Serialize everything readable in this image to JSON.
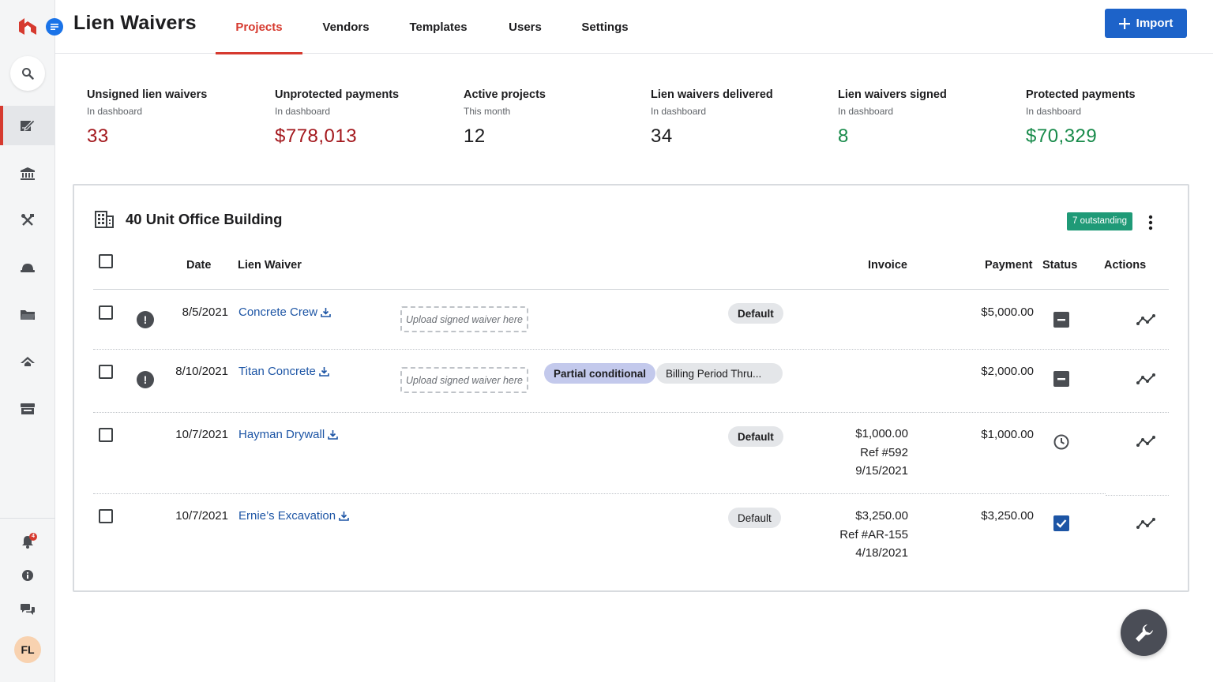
{
  "app": {
    "title": "Lien Waivers"
  },
  "nav": {
    "tabs": [
      "Projects",
      "Vendors",
      "Templates",
      "Users",
      "Settings"
    ],
    "active": "Projects"
  },
  "header": {
    "import_label": "Import"
  },
  "sidebar": {
    "items": [
      "search-icon",
      "lien-waiver-icon",
      "bank-icon",
      "tools-icon",
      "hardhat-icon",
      "folder-icon",
      "home-icon",
      "store-icon"
    ],
    "bottom": [
      "bell-icon",
      "info-icon",
      "chat-icon"
    ],
    "notification_count": "4",
    "avatar_initials": "FL"
  },
  "stats": [
    {
      "label": "Unsigned lien waivers",
      "sub": "In dashboard",
      "value": "33",
      "color": "#a3171c"
    },
    {
      "label": "Unprotected payments",
      "sub": "In dashboard",
      "value": "$778,013",
      "color": "#a3171c"
    },
    {
      "label": "Active projects",
      "sub": "This month",
      "value": "12",
      "color": "#1d1d1f"
    },
    {
      "label": "Lien waivers delivered",
      "sub": "In dashboard",
      "value": "34",
      "color": "#1d1d1f"
    },
    {
      "label": "Lien waivers signed",
      "sub": "In dashboard",
      "value": "8",
      "color": "#178a4a"
    },
    {
      "label": "Protected payments",
      "sub": "In dashboard",
      "value": "$70,329",
      "color": "#178a4a"
    }
  ],
  "project": {
    "title": "40 Unit Office Building",
    "outstanding": "7 outstanding",
    "columns": {
      "date": "Date",
      "waiver": "Lien Waiver",
      "invoice": "Invoice",
      "payment": "Payment",
      "status": "Status",
      "actions": "Actions"
    },
    "rows": [
      {
        "date": "8/5/2021",
        "vendor": "Concrete Crew",
        "warning": true,
        "upload": "Upload signed waiver here",
        "pills": [
          "Default"
        ],
        "invoice": [],
        "payment": "$5,000.00",
        "status": "minus"
      },
      {
        "date": "8/10/2021",
        "vendor": "Titan Concrete",
        "warning": true,
        "upload": "Upload signed waiver here",
        "pills": [
          "Partial conditional",
          "Billing Period Thru..."
        ],
        "invoice": [],
        "payment": "$2,000.00",
        "status": "minus"
      },
      {
        "date": "10/7/2021",
        "vendor": "Hayman Drywall",
        "warning": false,
        "upload": "",
        "pills": [
          "Default"
        ],
        "invoice": [
          "$1,000.00",
          "Ref #592",
          "9/15/2021"
        ],
        "payment": "$1,000.00",
        "status": "clock"
      },
      {
        "date": "10/7/2021",
        "vendor": "Ernie’s Excavation",
        "warning": false,
        "upload": "",
        "pills": [
          "Default"
        ],
        "invoice": [
          "$3,250.00",
          "Ref #AR-155",
          "4/18/2021"
        ],
        "payment": "$3,250.00",
        "status": "checked"
      }
    ]
  },
  "colors": {
    "accent": "#d63a2f",
    "primary": "#1d63c9",
    "link": "#1d55a5",
    "badge": "#1f9a77"
  }
}
